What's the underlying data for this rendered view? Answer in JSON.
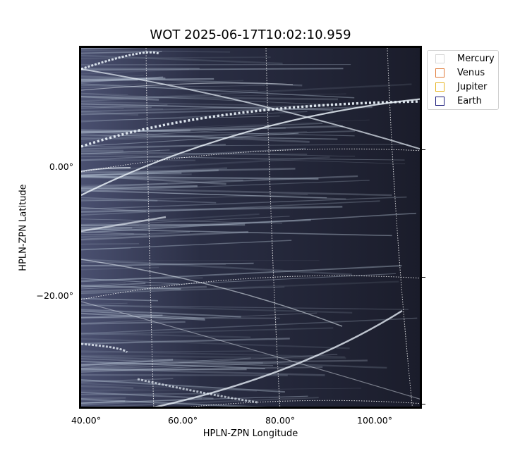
{
  "title": "WOT 2025-06-17T10:02:10.959",
  "xlabel": "HPLN-ZPN Longitude",
  "ylabel": "HPLN-ZPN Latitude",
  "x_ticks": [
    "40.00°",
    "60.00°",
    "80.00°",
    "100.00°"
  ],
  "y_ticks": [
    "0.00°",
    "−20.00°"
  ],
  "legend": [
    {
      "name": "Mercury",
      "color": "#d8d8d8"
    },
    {
      "name": "Venus",
      "color": "#e07b3a"
    },
    {
      "name": "Jupiter",
      "color": "#e6b422"
    },
    {
      "name": "Earth",
      "color": "#1a1a7a"
    }
  ],
  "colors": {
    "sky": "#202436",
    "streak": "#c8d4e0",
    "grid": "#ffffff"
  }
}
